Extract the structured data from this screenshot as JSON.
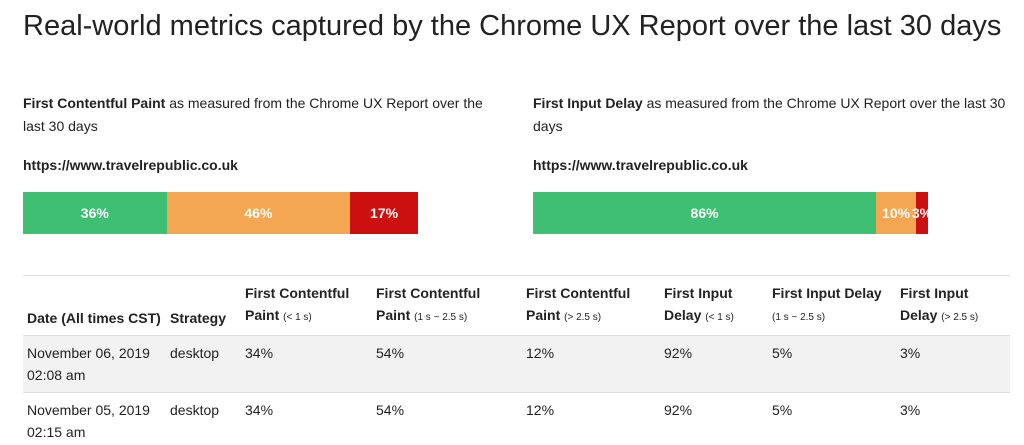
{
  "header": {
    "title": "Real-world metrics captured by the Chrome UX Report over the last 30 days"
  },
  "panels": [
    {
      "metric": "First Contentful Paint",
      "description": "as measured from the Chrome UX Report over the last 30 days",
      "url": "https://www.travelrepublic.co.uk",
      "values": [
        36,
        46,
        17
      ],
      "value_labels": [
        "36%",
        "46%",
        "17%"
      ],
      "colors": [
        "#3fbf71",
        "#f4a652",
        "#cc0f0f"
      ]
    },
    {
      "metric": "First Input Delay",
      "description": "as measured from the Chrome UX Report over the last 30 days",
      "url": "https://www.travelrepublic.co.uk",
      "values": [
        86,
        10,
        3
      ],
      "value_labels": [
        "86%",
        "10%",
        "3%"
      ],
      "colors": [
        "#3fbf71",
        "#f4a652",
        "#cc0f0f"
      ]
    }
  ],
  "table": {
    "header": [
      {
        "text": "Date (All times CST)"
      },
      {
        "text": "Strategy"
      },
      {
        "text": "First Contentful Paint",
        "sub": "(< 1 s)"
      },
      {
        "text": "First Contentful Paint",
        "sub": "(1 s ~ 2.5 s)"
      },
      {
        "text": "First Contentful Paint",
        "sub": "(> 2.5 s)"
      },
      {
        "text": "First Input Delay",
        "sub": "(< 1 s)"
      },
      {
        "text": "First Input Delay",
        "sub": "(1 s ~ 2.5 s)"
      },
      {
        "text": "First Input Delay",
        "sub": "(> 2.5 s)"
      }
    ],
    "rows": [
      [
        "November 06, 2019 02:08 am",
        "desktop",
        "34%",
        "54%",
        "12%",
        "92%",
        "5%",
        "3%"
      ],
      [
        "November 05, 2019 02:15 am",
        "desktop",
        "34%",
        "54%",
        "12%",
        "92%",
        "5%",
        "3%"
      ]
    ]
  }
}
